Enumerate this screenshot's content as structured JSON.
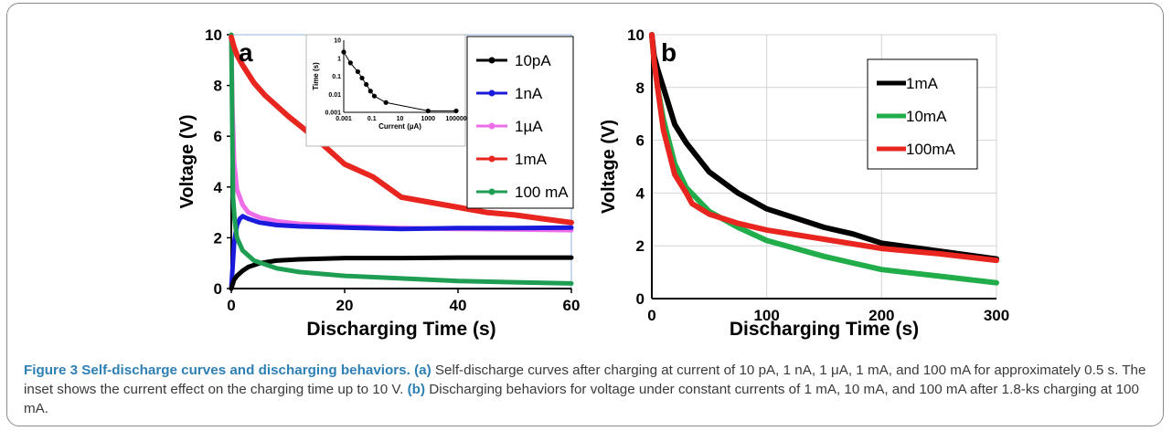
{
  "chart_data": [
    {
      "type": "line",
      "panel_label": "a",
      "xlabel": "Discharging Time (s)",
      "ylabel": "Voltage (V)",
      "xlim": [
        0,
        60
      ],
      "ylim": [
        0,
        10
      ],
      "xticks": [
        "0",
        "20",
        "40",
        "60"
      ],
      "yticks": [
        "0",
        "2",
        "4",
        "6",
        "8",
        "10"
      ],
      "grid": false,
      "legend_position": "right",
      "series": [
        {
          "name": "10pA",
          "color": "#000000",
          "x": [
            0,
            0.5,
            1,
            2,
            3,
            5,
            8,
            12,
            20,
            30,
            40,
            50,
            60
          ],
          "y": [
            0,
            0.35,
            0.5,
            0.7,
            0.85,
            1.0,
            1.1,
            1.15,
            1.2,
            1.2,
            1.22,
            1.22,
            1.22
          ]
        },
        {
          "name": "1nA",
          "color": "#1a1adc",
          "x": [
            0,
            0.5,
            1,
            1.5,
            2,
            3,
            5,
            8,
            12,
            20,
            30,
            40,
            50,
            60
          ],
          "y": [
            0,
            1.8,
            2.5,
            2.75,
            2.85,
            2.75,
            2.6,
            2.5,
            2.45,
            2.4,
            2.35,
            2.38,
            2.38,
            2.4
          ]
        },
        {
          "name": "1µA",
          "color": "#ee6de8",
          "x": [
            0,
            0.2,
            0.5,
            1,
            2,
            3,
            5,
            8,
            12,
            20,
            30,
            40,
            50,
            60
          ],
          "y": [
            10,
            7.2,
            5.0,
            3.9,
            3.3,
            3.0,
            2.8,
            2.65,
            2.55,
            2.45,
            2.38,
            2.35,
            2.33,
            2.3
          ]
        },
        {
          "name": "1mA",
          "color": "#e8261f",
          "x": [
            0,
            0.5,
            1,
            2,
            4,
            6,
            10,
            15,
            20,
            25,
            30,
            35,
            40,
            45,
            50,
            55,
            60
          ],
          "y": [
            9.9,
            9.5,
            9.2,
            8.8,
            8.1,
            7.6,
            6.8,
            5.9,
            4.9,
            4.4,
            3.6,
            3.4,
            3.2,
            3.0,
            2.9,
            2.75,
            2.6
          ]
        },
        {
          "name": "100 mA",
          "color": "#1e9e52",
          "x": [
            0,
            0.3,
            0.6,
            1,
            2,
            4,
            8,
            12,
            20,
            30,
            40,
            50,
            60
          ],
          "y": [
            10,
            3.6,
            2.7,
            2.0,
            1.5,
            1.1,
            0.8,
            0.65,
            0.5,
            0.4,
            0.3,
            0.25,
            0.2
          ]
        }
      ],
      "inset": {
        "type": "line",
        "xlabel": "Current (µA)",
        "ylabel": "Time (s)",
        "xscale": "log",
        "yscale": "log",
        "xticks": [
          "0.001",
          "0.1",
          "10",
          "1000",
          "100000"
        ],
        "yticks": [
          "0.001",
          "0.01",
          "0.1",
          "1",
          "10"
        ],
        "series": [
          {
            "x": [
              0.001,
              0.003,
              0.01,
              0.02,
              0.04,
              0.08,
              0.15,
              1,
              1000,
              100000
            ],
            "y": [
              2.2,
              0.55,
              0.18,
              0.08,
              0.035,
              0.015,
              0.008,
              0.0035,
              0.0012,
              0.0012
            ]
          }
        ]
      }
    },
    {
      "type": "line",
      "panel_label": "b",
      "xlabel": "Discharging Time (s)",
      "ylabel": "Voltage (V)",
      "xlim": [
        0,
        300
      ],
      "ylim": [
        0,
        10
      ],
      "xticks": [
        "0",
        "100",
        "200",
        "300"
      ],
      "yticks": [
        "0",
        "2",
        "4",
        "6",
        "8",
        "10"
      ],
      "grid": true,
      "legend_position": "top-right",
      "series": [
        {
          "name": "1mA",
          "color": "#000000",
          "x": [
            0,
            2,
            5,
            10,
            20,
            30,
            50,
            75,
            100,
            150,
            175,
            200,
            250,
            300
          ],
          "y": [
            10,
            9.2,
            8.7,
            8.0,
            6.6,
            5.9,
            4.8,
            4.0,
            3.4,
            2.7,
            2.45,
            2.1,
            1.8,
            1.5
          ]
        },
        {
          "name": "10mA",
          "color": "#22ad4b",
          "x": [
            0,
            2,
            5,
            10,
            20,
            30,
            50,
            75,
            100,
            150,
            175,
            200,
            250,
            300
          ],
          "y": [
            10,
            9.0,
            8.0,
            6.8,
            5.1,
            4.2,
            3.3,
            2.7,
            2.2,
            1.6,
            1.35,
            1.1,
            0.85,
            0.6
          ]
        },
        {
          "name": "100mA",
          "color": "#e8261f",
          "x": [
            0,
            2,
            5,
            10,
            20,
            30,
            35,
            50,
            75,
            100,
            150,
            200,
            250,
            300
          ],
          "y": [
            10,
            9.0,
            8.0,
            6.4,
            4.7,
            4.0,
            3.6,
            3.2,
            2.85,
            2.6,
            2.25,
            1.9,
            1.7,
            1.45
          ]
        }
      ]
    }
  ],
  "caption": {
    "label": "Figure 3 Self-discharge curves and discharging behaviors.",
    "part_a_label": "(a)",
    "part_a_text": "Self-discharge curves after charging at current of 10 pA, 1 nA, 1 μA, 1 mA, and 100 mA for approximately 0.5 s. The inset shows the current effect on the charging time up to 10 V.",
    "part_b_label": "(b)",
    "part_b_text": "Discharging behaviors for voltage under constant currents of 1 mA, 10 mA, and 100 mA after 1.8-ks charging at 100 mA."
  }
}
